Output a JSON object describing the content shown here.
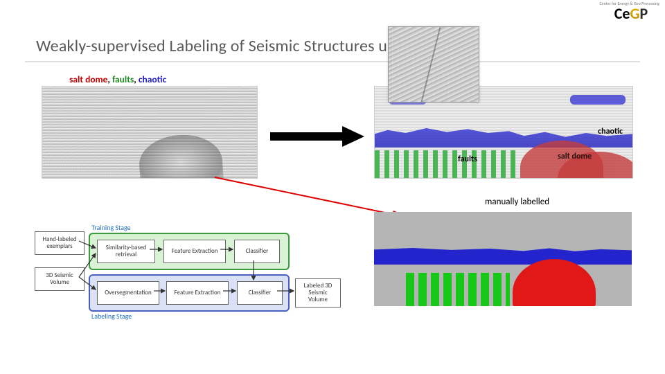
{
  "logo": {
    "text_span1": "Ce",
    "text_span2": "G",
    "text_span3": "P",
    "tagline": "Center for Energy & Geo Processing"
  },
  "title": "Weakly-supervised Labeling of Seismic Structures using                       emplars",
  "top_labels": {
    "full_line_parts": [
      {
        "text": "salt dome",
        "color": "#c00000"
      },
      {
        "text": ", ",
        "color": "#000000"
      },
      {
        "text": "faults",
        "color": "#1f8a1f"
      },
      {
        "text": ", ",
        "color": "#000000"
      },
      {
        "text": "chaotic",
        "color": "#2020c0"
      }
    ]
  },
  "right_image": {
    "chaotic_label": "chaotic",
    "faults_label": "faults",
    "salt_label": "salt dome",
    "colors": {
      "chaotic": "#3a3ad4",
      "faults": "#2fae3a",
      "salt": "#c43c3c"
    }
  },
  "manually_labelled": "manually labelled",
  "segmentation": {
    "colors": {
      "background": "#b5b5b5",
      "chaotic": "#2424cc",
      "salt": "#e01818",
      "faults": "#18c818"
    }
  },
  "pipeline": {
    "training_stage_label": "Training Stage",
    "labeling_stage_label": "Labeling Stage",
    "boxes": {
      "hand_labeled": "Hand-labeled exemplars",
      "seismic_volume": "3D Seismic Volume",
      "similarity": "Similarity-based retrieval",
      "feat1": "Feature Extraction",
      "classifier1": "Classifier",
      "overseg": "Oversegmentation",
      "feat2": "Feature Extraction",
      "classifier2": "Classifier",
      "labeled_volume": "Labeled 3D Seismic Volume"
    },
    "stage_colors": {
      "training_fill": "#d9f2d6",
      "training_border": "#3a9b3a",
      "labeling_fill": "#dbe1f5",
      "labeling_border": "#4a60c0"
    }
  }
}
